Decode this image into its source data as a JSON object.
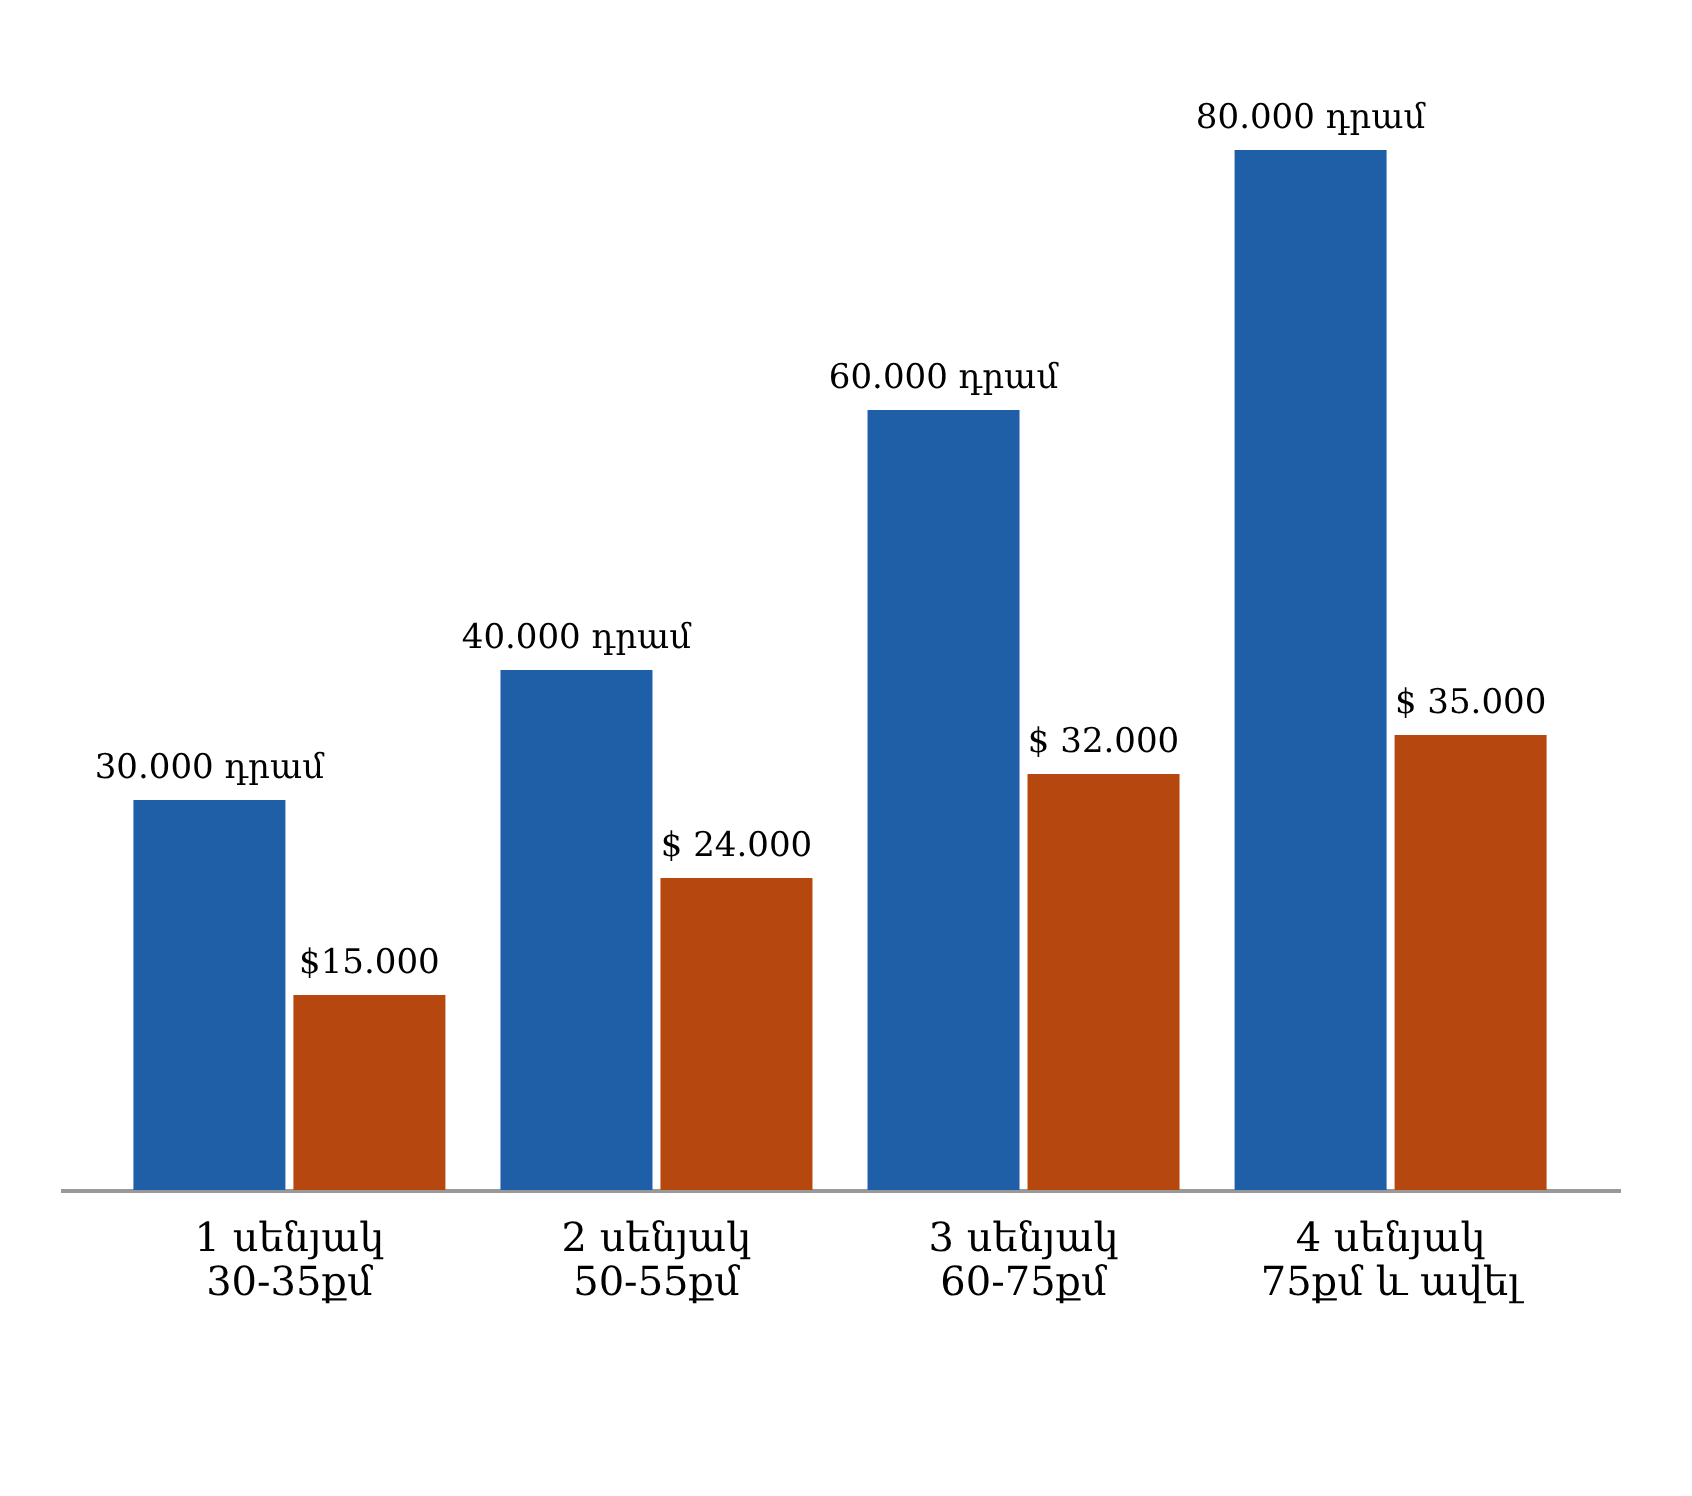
{
  "chart_data": {
    "type": "bar",
    "categories": [
      "1 սենյակ\n30-35քմ",
      "2 սենյակ\n50-55քմ",
      "3 սենյակ\n60-75քմ",
      "4 սենյակ\n75քմ և ավել"
    ],
    "series": [
      {
        "color": "#1f5fa8",
        "values": [
          30000,
          40000,
          60000,
          80000
        ],
        "value_labels": [
          "30.000 դրամ",
          "40.000 դրամ",
          "60.000 դրամ",
          "80.000 դրամ"
        ]
      },
      {
        "color": "#b5470f",
        "values": [
          15000,
          24000,
          32000,
          35000
        ],
        "value_labels": [
          "$15.000",
          "$ 24.000",
          "$ 32.000",
          "$ 35.000"
        ]
      }
    ]
  }
}
